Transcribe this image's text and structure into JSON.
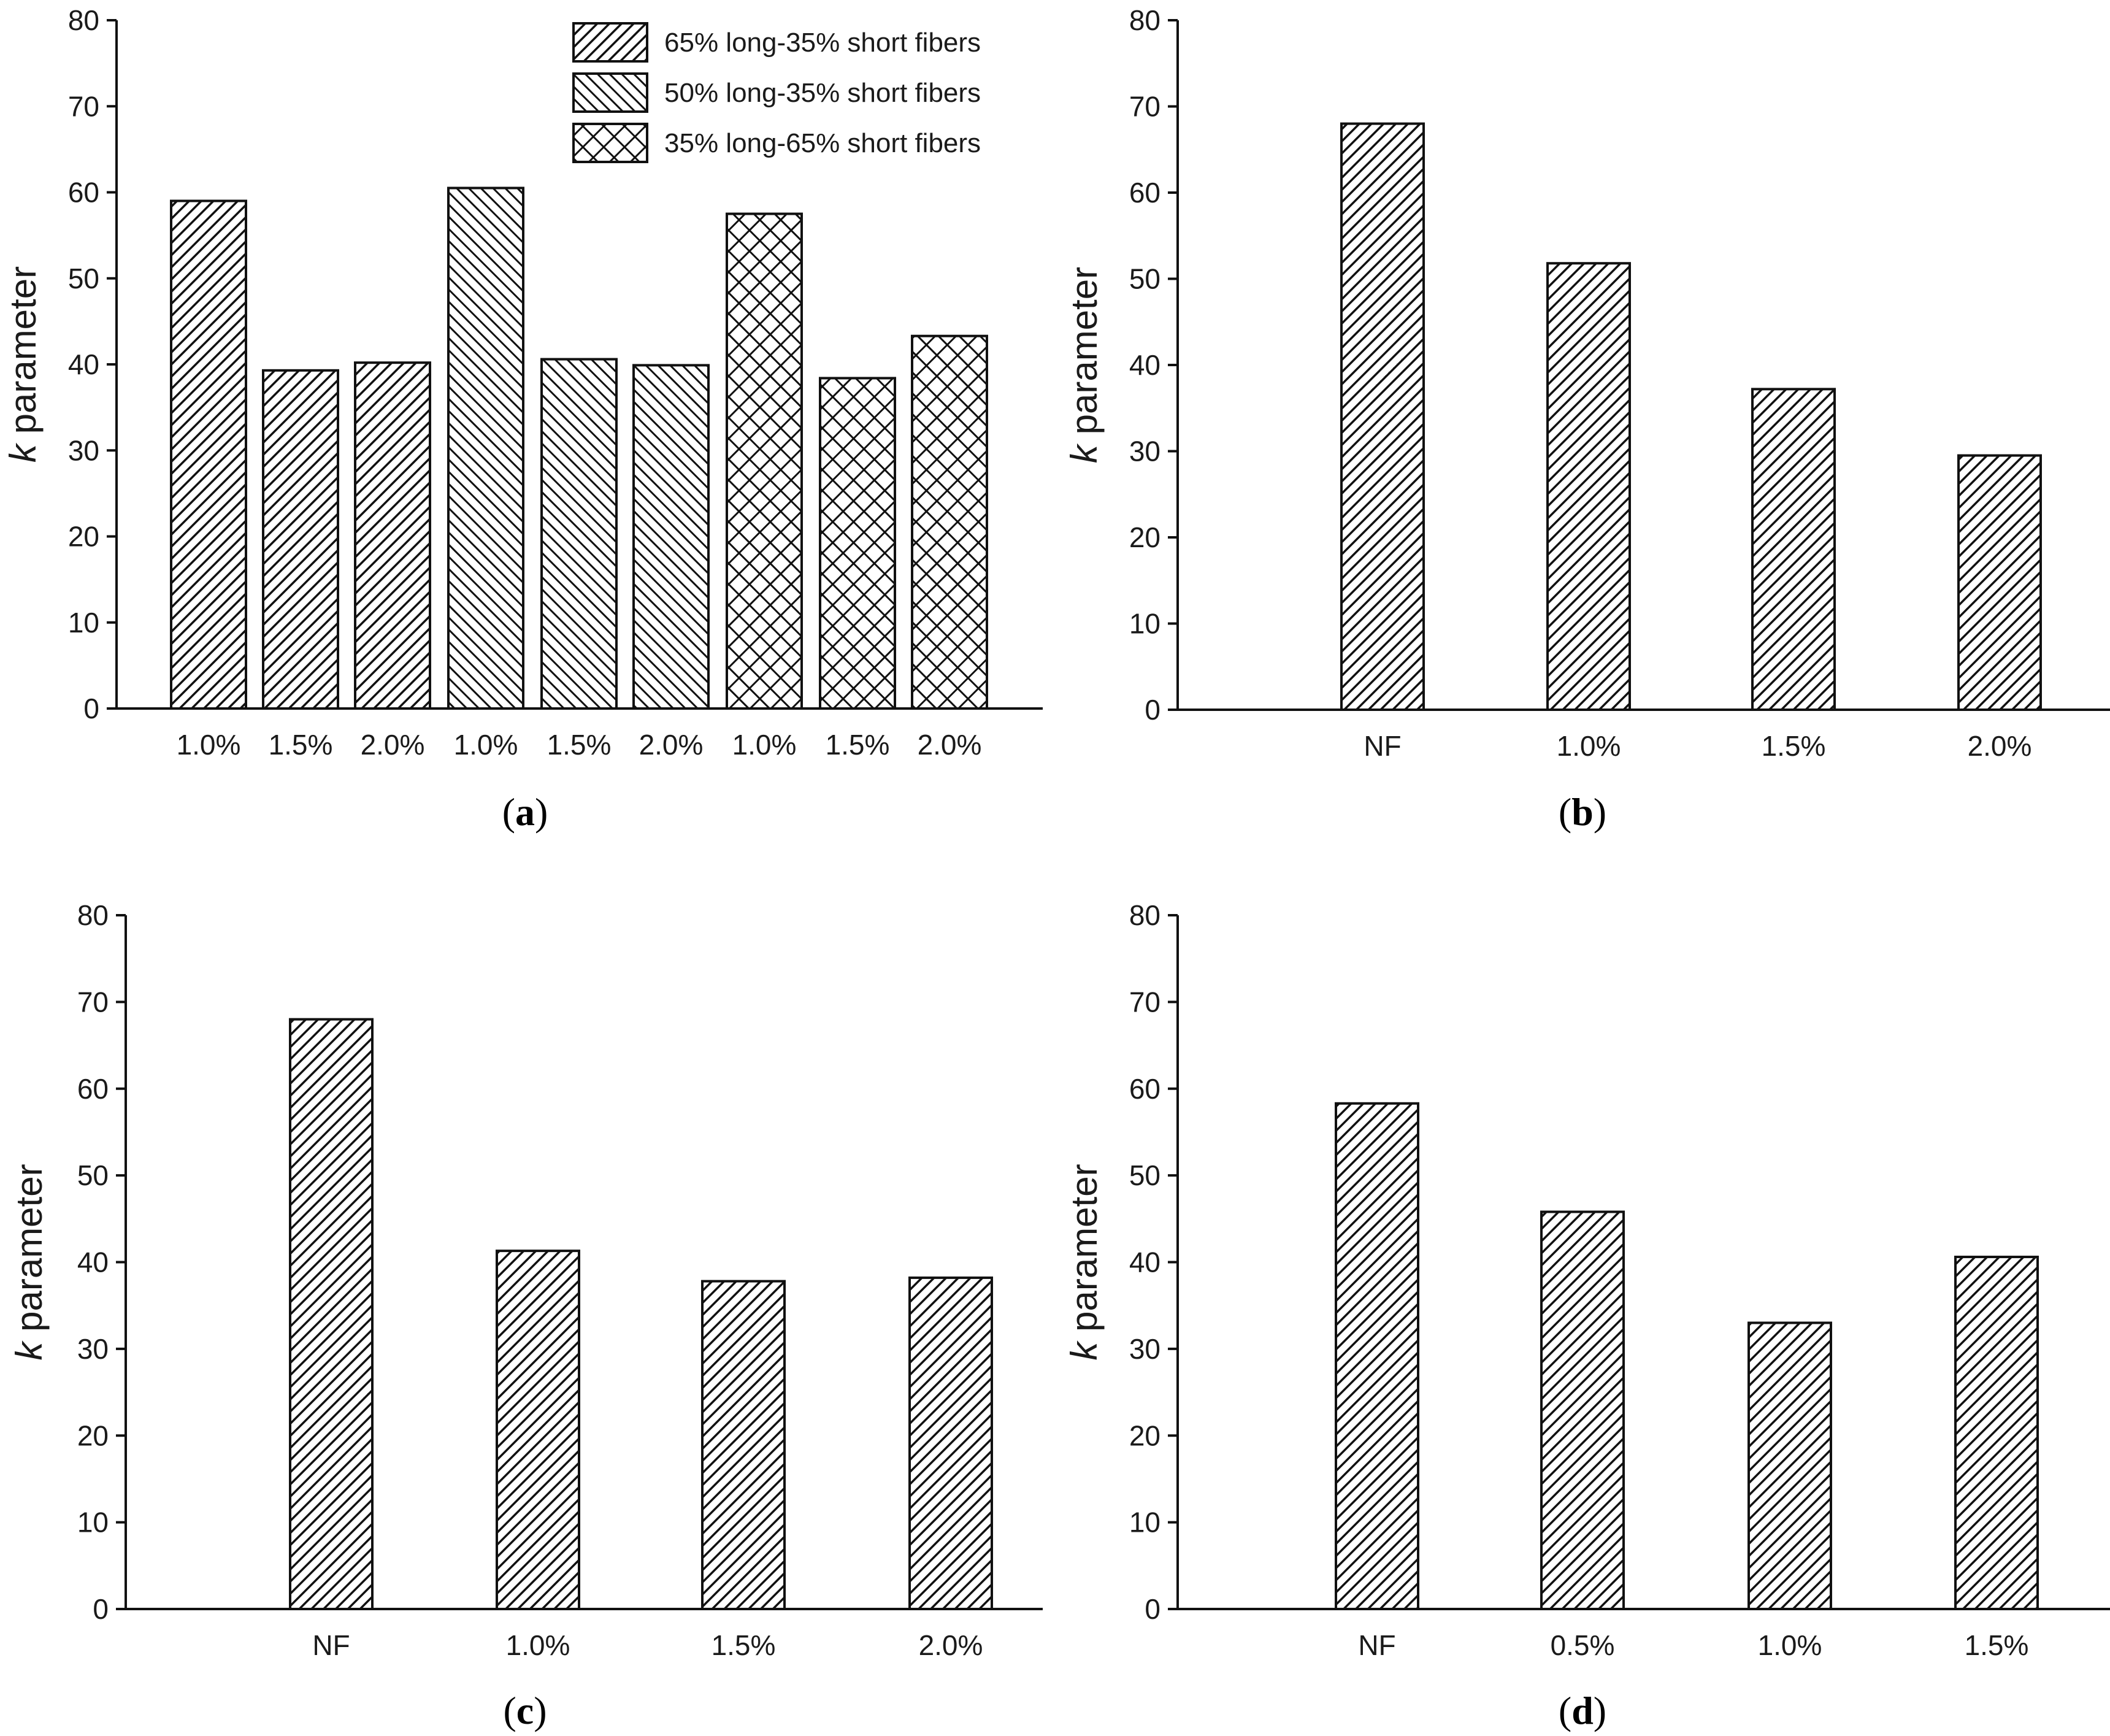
{
  "chart_data": [
    {
      "panel": "a",
      "type": "bar",
      "caption": "(a)",
      "ylabel_k": "k",
      "ylabel_rest": " parameter",
      "ylim": [
        0,
        80
      ],
      "yticks": [
        "0",
        "10",
        "20",
        "30",
        "40",
        "50",
        "60",
        "70",
        "80"
      ],
      "categories": [
        "1.0%",
        "1.5%",
        "2.0%",
        "1.0%",
        "1.5%",
        "2.0%",
        "1.0%",
        "1.5%",
        "2.0%"
      ],
      "values": [
        59,
        39.3,
        40.2,
        60.5,
        40.6,
        39.9,
        57.5,
        38.4,
        43.3
      ],
      "groups": [
        "s1",
        "s1",
        "s1",
        "s2",
        "s2",
        "s2",
        "s3",
        "s3",
        "s3"
      ],
      "legend": [
        {
          "id": "s1",
          "label": "65% long-35% short fibers",
          "pattern": "diag-right"
        },
        {
          "id": "s2",
          "label": "50% long-35% short fibers",
          "pattern": "diag-left"
        },
        {
          "id": "s3",
          "label": "35% long-65% short fibers",
          "pattern": "cross"
        }
      ]
    },
    {
      "panel": "b",
      "type": "bar",
      "caption": "(b)",
      "ylabel_k": "k",
      "ylabel_rest": " parameter",
      "ylim": [
        0,
        80
      ],
      "yticks": [
        "0",
        "10",
        "20",
        "30",
        "40",
        "50",
        "60",
        "70",
        "80"
      ],
      "categories": [
        "NF",
        "1.0%",
        "1.5%",
        "2.0%"
      ],
      "values": [
        68,
        51.8,
        37.2,
        29.5
      ]
    },
    {
      "panel": "c",
      "type": "bar",
      "caption": "(c)",
      "ylabel_k": "k",
      "ylabel_rest": " parameter",
      "ylim": [
        0,
        80
      ],
      "yticks": [
        "0",
        "10",
        "20",
        "30",
        "40",
        "50",
        "60",
        "70",
        "80"
      ],
      "categories": [
        "NF",
        "1.0%",
        "1.5%",
        "2.0%"
      ],
      "values": [
        68,
        41.3,
        37.8,
        38.2
      ]
    },
    {
      "panel": "d",
      "type": "bar",
      "caption": "(d)",
      "ylabel_k": "k",
      "ylabel_rest": " parameter",
      "ylim": [
        0,
        80
      ],
      "yticks": [
        "0",
        "10",
        "20",
        "30",
        "40",
        "50",
        "60",
        "70",
        "80"
      ],
      "categories": [
        "NF",
        "0.5%",
        "1.0%",
        "1.5%"
      ],
      "values": [
        58.3,
        45.8,
        33,
        40.6
      ]
    }
  ]
}
